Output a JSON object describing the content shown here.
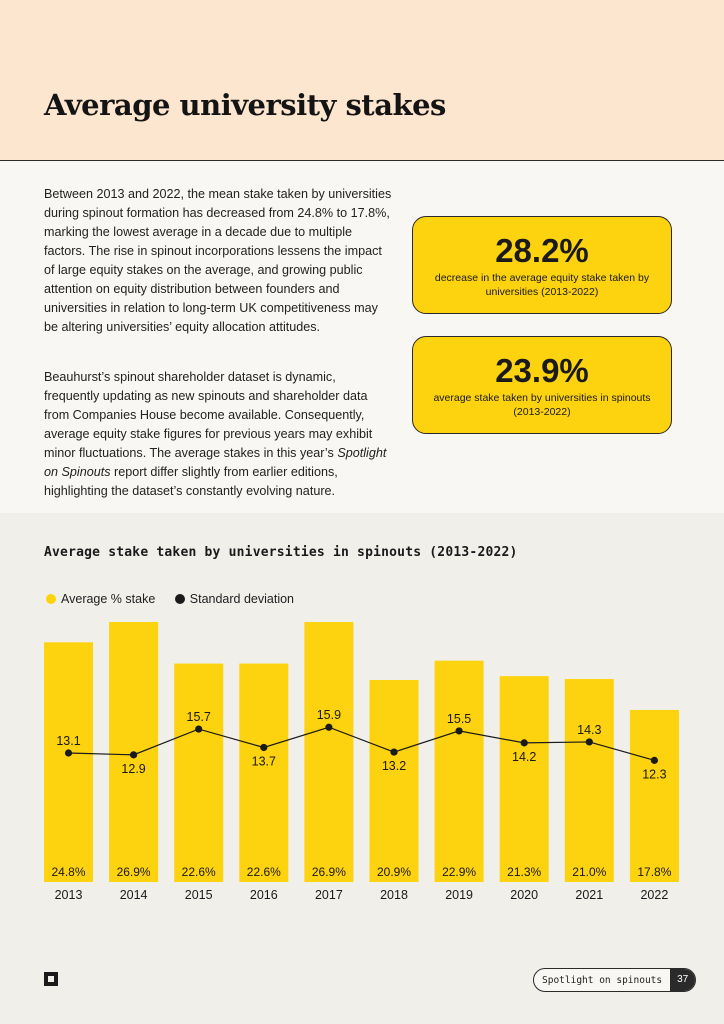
{
  "header": {
    "title": "Average university stakes"
  },
  "intro": {
    "paragraph1": "Between 2013 and 2022, the mean stake taken by universities during spinout formation has decreased from 24.8% to 17.8%, marking the lowest average in a decade due to multiple factors. The rise in spinout incorporations lessens the impact of large equity stakes on the average, and growing public attention on equity distribution between founders and universities in relation to long-term UK competitiveness may be altering universities’ equity allocation attitudes.",
    "paragraph2_before": "Beauhurst’s spinout shareholder dataset is dynamic, frequently updating as new spinouts and shareholder data from Companies House become available. Consequently, average equity stake figures for previous years may exhibit minor fluctuations. The average stakes in this year’s ",
    "paragraph2_italic": "Spotlight on Spinouts",
    "paragraph2_after": " report differ slightly from earlier editions, highlighting the dataset’s constantly evolving nature."
  },
  "cards": [
    {
      "value": "28.2%",
      "description": "decrease in the average equity stake taken by universities (2013-2022)"
    },
    {
      "value": "23.9%",
      "description": "average stake taken by universities in spinouts (2013-2022)"
    }
  ],
  "colors": {
    "bar": "#fdd20e",
    "line": "#1a1a1a",
    "header_bg": "#fde6cf"
  },
  "chart_data": {
    "type": "bar",
    "title": "Average stake taken by universities in spinouts (2013-2022)",
    "categories": [
      "2013",
      "2014",
      "2015",
      "2016",
      "2017",
      "2018",
      "2019",
      "2020",
      "2021",
      "2022"
    ],
    "series": [
      {
        "name": "Average % stake",
        "type": "bar",
        "values": [
          24.8,
          26.9,
          22.6,
          22.6,
          26.9,
          20.9,
          22.9,
          21.3,
          21.0,
          17.8
        ],
        "labels": [
          "24.8%",
          "26.9%",
          "22.6%",
          "22.6%",
          "26.9%",
          "20.9%",
          "22.9%",
          "21.3%",
          "21.0%",
          "17.8%"
        ]
      },
      {
        "name": "Standard deviation",
        "type": "line",
        "values": [
          13.1,
          12.9,
          15.7,
          13.7,
          15.9,
          13.2,
          15.5,
          14.2,
          14.3,
          12.3
        ],
        "labels": [
          "13.1",
          "12.9",
          "15.7",
          "13.7",
          "15.9",
          "13.2",
          "15.5",
          "14.2",
          "14.3",
          "12.3"
        ],
        "label_position": [
          "above",
          "below",
          "above",
          "below",
          "above",
          "below",
          "above",
          "below",
          "above",
          "below"
        ]
      }
    ],
    "legend": "top-left",
    "grid": false
  },
  "footer": {
    "label": "Spotlight on spinouts",
    "page": "37"
  }
}
